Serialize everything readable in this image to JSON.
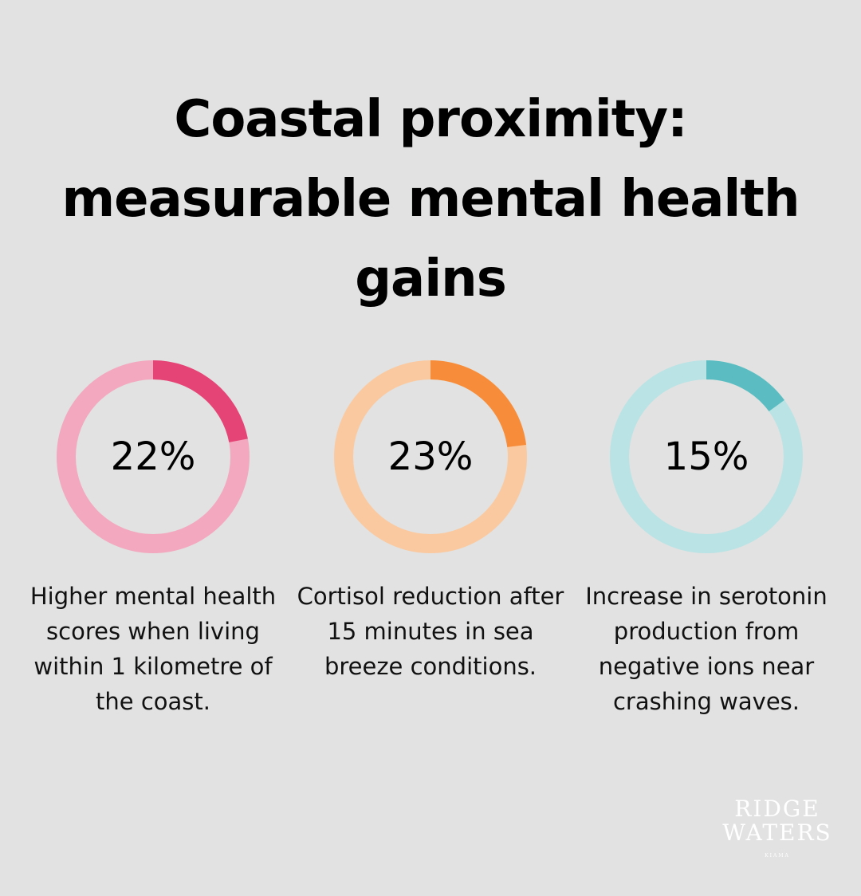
{
  "title": "Coastal proximity: measurable mental health gains",
  "title_lines": [
    "Coastal proximity:",
    "measurable mental health",
    "gains"
  ],
  "stats": [
    {
      "value": "22%",
      "percent": 22,
      "description": "Higher mental health scores when living within 1 kilometre of the coast.",
      "color_fill": "#e44476",
      "color_track": "#f3a8bf"
    },
    {
      "value": "23%",
      "percent": 23,
      "description": "Cortisol reduction after 15 minutes in sea breeze conditions.",
      "color_fill": "#f78d3a",
      "color_track": "#fbc9a0"
    },
    {
      "value": "15%",
      "percent": 15,
      "description": "Increase in serotonin production from negative ions near crashing waves.",
      "color_fill": "#5bbdc1",
      "color_track": "#b9e3e5"
    }
  ],
  "logo": {
    "line1": "RIDGE",
    "line2": "WATERS",
    "line3": "KIAMA"
  },
  "chart_data": {
    "type": "pie",
    "title": "Coastal proximity: measurable mental health gains",
    "categories": [
      "Higher mental health scores when living within 1 kilometre of the coast.",
      "Cortisol reduction after 15 minutes in sea breeze conditions.",
      "Increase in serotonin production from negative ions near crashing waves."
    ],
    "values": [
      22,
      23,
      15
    ],
    "unit": "%",
    "style": "donut-progress"
  }
}
